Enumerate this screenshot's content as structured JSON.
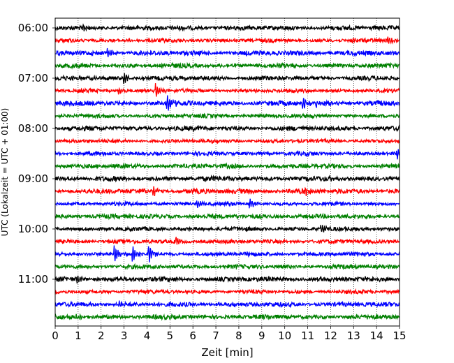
{
  "chart_data": {
    "type": "line",
    "title": "",
    "xlabel": "Zeit  [min]",
    "ylabel": "UTC (Lokalzeit = UTC + 01:00)",
    "xlim": [
      0,
      15
    ],
    "x_ticks": [
      "0",
      "1",
      "2",
      "3",
      "4",
      "5",
      "6",
      "7",
      "8",
      "9",
      "10",
      "11",
      "12",
      "13",
      "14",
      "15"
    ],
    "y_ticks": [
      {
        "label": "06:00",
        "hour": 0
      },
      {
        "label": "07:00",
        "hour": 4
      },
      {
        "label": "08:00",
        "hour": 8
      },
      {
        "label": "09:00",
        "hour": 12
      },
      {
        "label": "10:00",
        "hour": 16
      },
      {
        "label": "11:00",
        "hour": 20
      }
    ],
    "grid": "vertical-dotted",
    "color_cycle": [
      "#000000",
      "#ff0000",
      "#0000ff",
      "#008000"
    ],
    "trace_start_times": [
      "06:00",
      "06:15",
      "06:30",
      "06:45",
      "07:00",
      "07:15",
      "07:30",
      "07:45",
      "08:00",
      "08:15",
      "08:30",
      "08:45",
      "09:00",
      "09:15",
      "09:30",
      "09:45",
      "10:00",
      "10:15",
      "10:30",
      "10:45",
      "11:00",
      "11:15",
      "11:30",
      "11:45"
    ],
    "events": [
      {
        "trace": 0,
        "t": 1.2,
        "amp": 0.5
      },
      {
        "trace": 1,
        "t": 13.0,
        "amp": 0.4
      },
      {
        "trace": 1,
        "t": 14.5,
        "amp": 0.5
      },
      {
        "trace": 2,
        "t": 2.3,
        "amp": 0.6
      },
      {
        "trace": 4,
        "t": 3.0,
        "amp": 0.9
      },
      {
        "trace": 5,
        "t": 4.4,
        "amp": 1.2
      },
      {
        "trace": 5,
        "t": 2.8,
        "amp": 0.5
      },
      {
        "trace": 6,
        "t": 4.9,
        "amp": 1.1
      },
      {
        "trace": 6,
        "t": 10.8,
        "amp": 0.8
      },
      {
        "trace": 6,
        "t": 11.4,
        "amp": 0.5
      },
      {
        "trace": 10,
        "t": 14.9,
        "amp": 0.7
      },
      {
        "trace": 13,
        "t": 4.3,
        "amp": 0.6
      },
      {
        "trace": 13,
        "t": 10.9,
        "amp": 0.5
      },
      {
        "trace": 14,
        "t": 8.5,
        "amp": 0.8
      },
      {
        "trace": 14,
        "t": 6.2,
        "amp": 0.6
      },
      {
        "trace": 16,
        "t": 11.6,
        "amp": 0.7
      },
      {
        "trace": 17,
        "t": 5.3,
        "amp": 0.6
      },
      {
        "trace": 18,
        "t": 2.6,
        "amp": 1.2
      },
      {
        "trace": 18,
        "t": 3.4,
        "amp": 1.1
      },
      {
        "trace": 18,
        "t": 4.1,
        "amp": 1.4
      },
      {
        "trace": 20,
        "t": 1.0,
        "amp": 0.6
      },
      {
        "trace": 22,
        "t": 2.8,
        "amp": 0.4
      },
      {
        "trace": 23,
        "t": 0.9,
        "amp": 0.5
      }
    ]
  }
}
